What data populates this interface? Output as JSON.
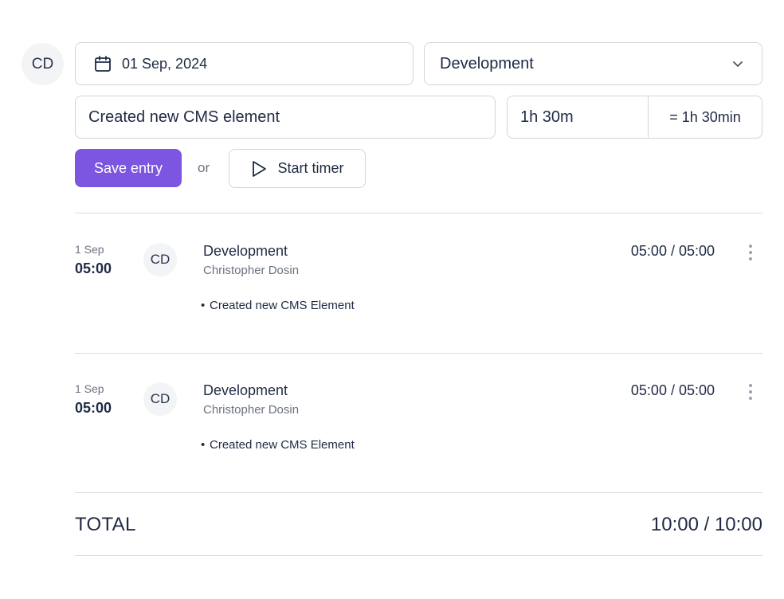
{
  "form": {
    "user_initials": "CD",
    "date_value": "01 Sep, 2024",
    "category_value": "Development",
    "description_value": "Created new CMS element",
    "duration_value": "1h 30m",
    "duration_result": "= 1h 30min",
    "save_label": "Save entry",
    "or_label": "or",
    "timer_label": "Start timer",
    "icons": {
      "date": "calendar-icon",
      "category": "chevron-down-icon",
      "timer": "play-icon"
    }
  },
  "entries": [
    {
      "date": "1 Sep",
      "start_time": "05:00",
      "initials": "CD",
      "category": "Development",
      "user": "Christopher Dosin",
      "note": "Created new CMS Element",
      "hours": "05:00 / 05:00"
    },
    {
      "date": "1 Sep",
      "start_time": "05:00",
      "initials": "CD",
      "category": "Development",
      "user": "Christopher Dosin",
      "note": "Created new CMS Element",
      "hours": "05:00 / 05:00"
    }
  ],
  "total": {
    "label": "TOTAL",
    "value": "10:00 / 10:00"
  },
  "colors": {
    "accent": "#7c55e0",
    "text": "#1f2a44",
    "muted": "#6b7280",
    "border": "#d1d5db"
  }
}
